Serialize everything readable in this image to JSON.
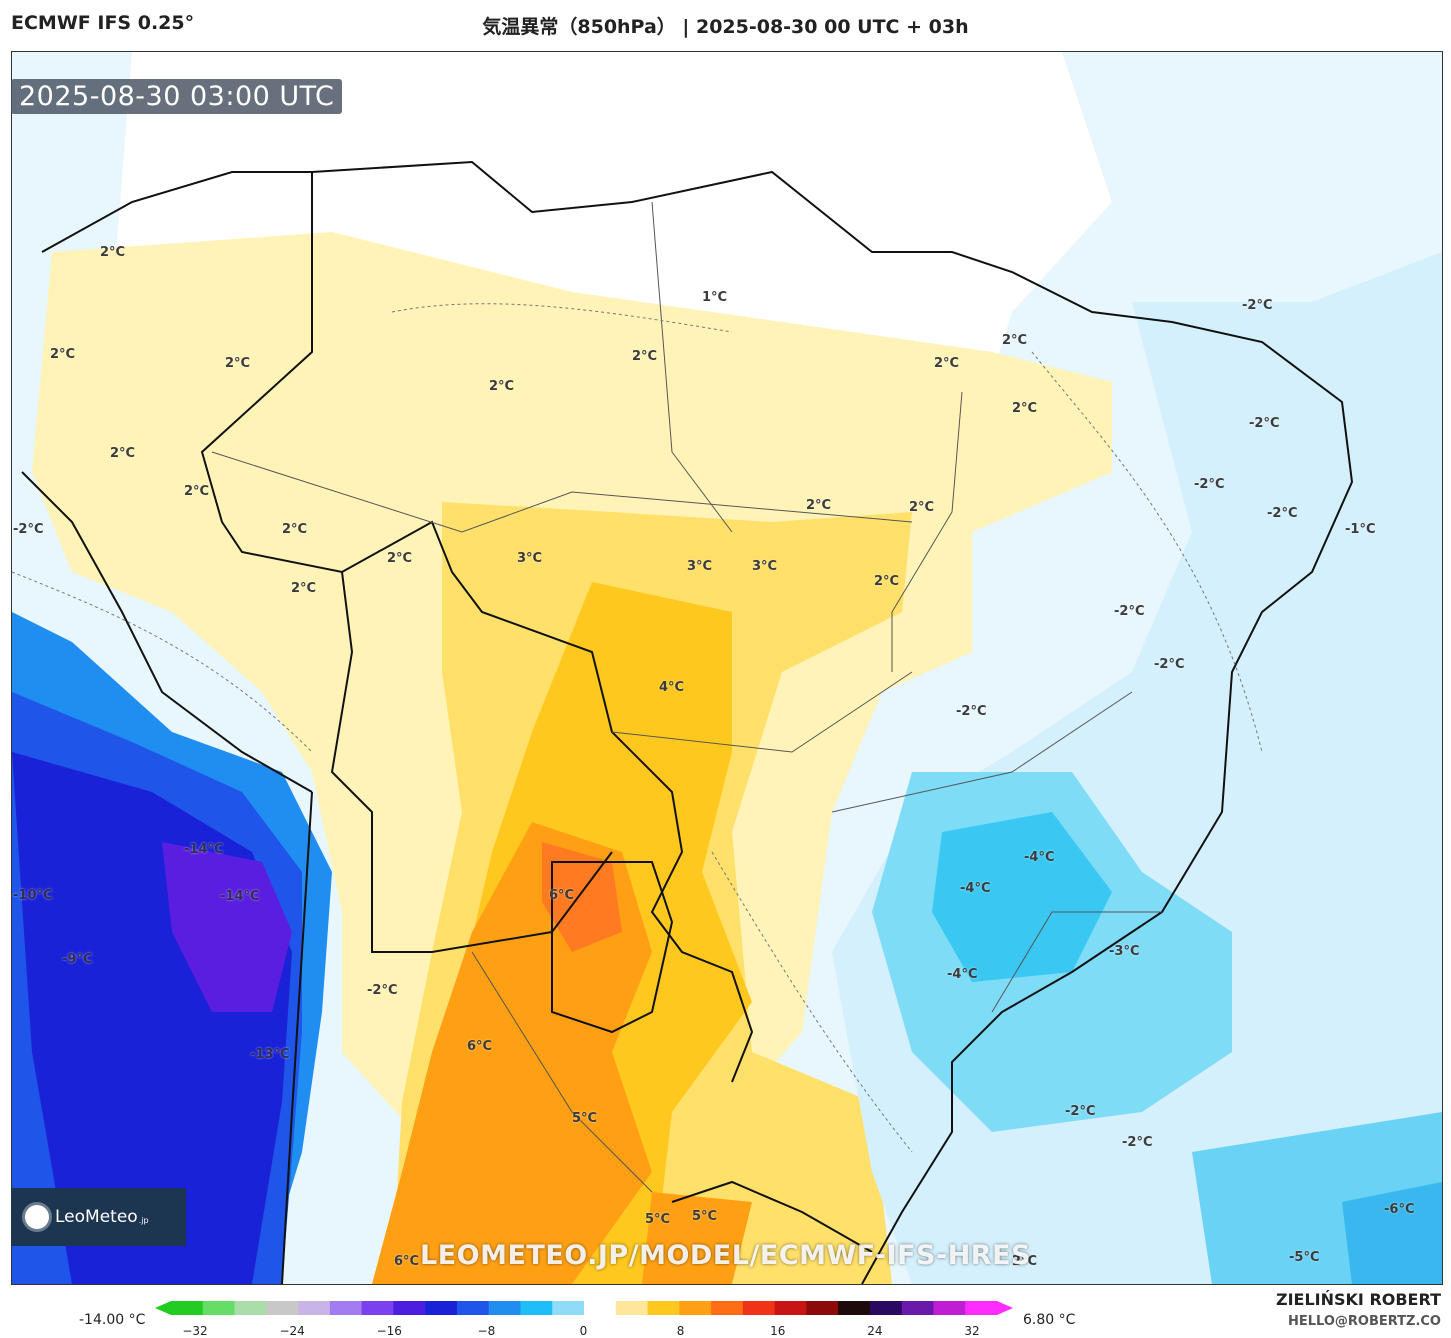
{
  "header": {
    "model": "ECMWF IFS 0.25°",
    "title": "気温異常（850hPa） | 2025-08-30 00 UTC + 03h"
  },
  "map": {
    "timestamp": "2025-08-30 03:00 UTC",
    "watermark": "LEOMETEO.JP/MODEL/ECMWF-IFS-HRES",
    "logo": {
      "name": "LeoMeteo",
      "suffix": ".jp",
      "icon": "sun-icon"
    },
    "labels": [
      {
        "text": "2°C"
      },
      {
        "text": "1°C"
      },
      {
        "text": "2°C"
      },
      {
        "text": "2°C"
      },
      {
        "text": "2°C"
      },
      {
        "text": "2°C"
      },
      {
        "text": "2°C"
      },
      {
        "text": "2°C"
      },
      {
        "text": "2°C"
      },
      {
        "text": "2°C"
      },
      {
        "text": "2°C"
      },
      {
        "text": "2°C"
      },
      {
        "text": "2°C"
      },
      {
        "text": "2°C"
      },
      {
        "text": "2°C"
      },
      {
        "text": "2°C"
      },
      {
        "text": "3°C"
      },
      {
        "text": "3°C"
      },
      {
        "text": "3°C"
      },
      {
        "text": "2°C"
      },
      {
        "text": "4°C"
      },
      {
        "text": "6°C"
      },
      {
        "text": "6°C"
      },
      {
        "text": "5°C"
      },
      {
        "text": "5°C"
      },
      {
        "text": "5°C"
      },
      {
        "text": "6°C"
      },
      {
        "text": "-2°C"
      },
      {
        "text": "-2°C"
      },
      {
        "text": "-2°C"
      },
      {
        "text": "-2°C"
      },
      {
        "text": "-1°C"
      },
      {
        "text": "-2°C"
      },
      {
        "text": "-2°C"
      },
      {
        "text": "-2°C"
      },
      {
        "text": "-4°C"
      },
      {
        "text": "-4°C"
      },
      {
        "text": "-3°C"
      },
      {
        "text": "-4°C"
      },
      {
        "text": "-2°C"
      },
      {
        "text": "-2°C"
      },
      {
        "text": "-6°C"
      },
      {
        "text": "-5°C"
      },
      {
        "text": "-2°C"
      },
      {
        "text": "-14°C"
      },
      {
        "text": "-14°C"
      },
      {
        "text": "-10°C"
      },
      {
        "text": "-9°C"
      },
      {
        "text": "-13°C"
      },
      {
        "text": "-2°C"
      },
      {
        "text": "2°C"
      }
    ]
  },
  "colorbar": {
    "min_label": "-14.00 °C",
    "max_label": "6.80 °C",
    "ticks": [
      "−32",
      "−24",
      "−16",
      "−8",
      "0",
      "8",
      "16",
      "24",
      "32"
    ],
    "colors": [
      "#22cc22",
      "#66dd66",
      "#aaddaa",
      "#c8c8c8",
      "#c8b4e6",
      "#a27cf0",
      "#7b40f0",
      "#4b1ee0",
      "#1a22d8",
      "#1f55e8",
      "#1f8ef0",
      "#1fbef8",
      "#8fdcf8",
      "#ffffff",
      "#ffe69a",
      "#ffc81e",
      "#ffa014",
      "#ff6e14",
      "#f03218",
      "#c81414",
      "#8c0a0a",
      "#1e0a0a",
      "#2a0a60",
      "#6a1aaa",
      "#c01ed2",
      "#ff2cff"
    ]
  },
  "credits": {
    "author": "ZIELIŃSKI ROBERT",
    "email": "HELLO@ROBERTZ.CO"
  }
}
